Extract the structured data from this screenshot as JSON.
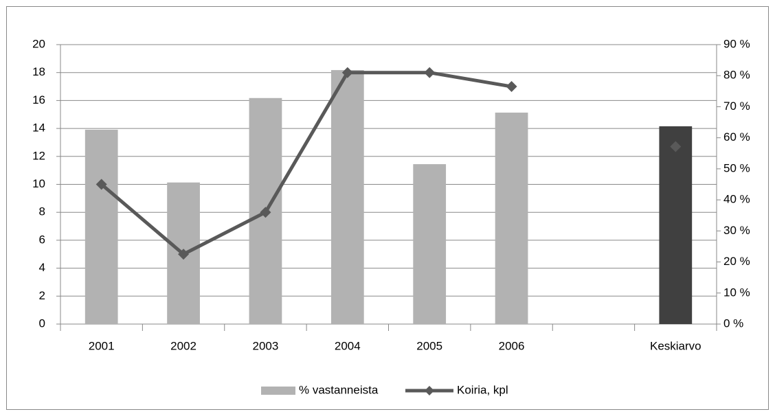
{
  "chart_data": {
    "type": "bar",
    "categories": [
      "2001",
      "2002",
      "2003",
      "2004",
      "2005",
      "2006",
      null,
      "Keskiarvo"
    ],
    "series": [
      {
        "name": "% vastanneista",
        "type": "bar",
        "axis": "y2",
        "color": "#b2b2b2",
        "colors": [
          "#b2b2b2",
          "#b2b2b2",
          "#b2b2b2",
          "#b2b2b2",
          "#b2b2b2",
          "#b2b2b2",
          "#b2b2b2",
          "#404040"
        ],
        "values": [
          62.6,
          45.6,
          72.8,
          81.8,
          51.5,
          68.1,
          null,
          63.7
        ]
      },
      {
        "name": "Koiria, kpl",
        "type": "line",
        "axis": "y",
        "color": "#595959",
        "values": [
          10,
          5,
          8,
          18,
          18,
          17,
          null,
          12.7
        ]
      }
    ],
    "ylim": [
      0,
      20
    ],
    "yticks": [
      0,
      2,
      4,
      6,
      8,
      10,
      12,
      14,
      16,
      18,
      20
    ],
    "y2lim": [
      0,
      90
    ],
    "y2ticks": [
      {
        "value": 0,
        "label": "0 %"
      },
      {
        "value": 10,
        "label": "10 %"
      },
      {
        "value": 20,
        "label": "20 %"
      },
      {
        "value": 30,
        "label": "30 %"
      },
      {
        "value": 40,
        "label": "40 %"
      },
      {
        "value": 50,
        "label": "50 %"
      },
      {
        "value": 60,
        "label": "60 %"
      },
      {
        "value": 70,
        "label": "70 %"
      },
      {
        "value": 80,
        "label": "80 %"
      },
      {
        "value": 90,
        "label": "90 %"
      }
    ],
    "grid": true,
    "legend": "bottom"
  }
}
